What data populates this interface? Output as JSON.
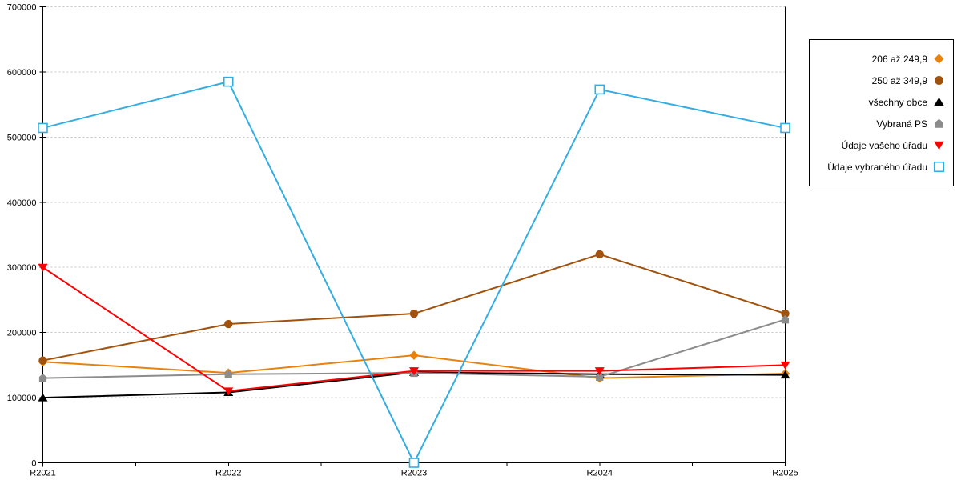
{
  "chart_data": {
    "type": "line",
    "title": "",
    "xlabel": "",
    "ylabel": "",
    "categories": [
      "R2021",
      "R2022",
      "R2023",
      "R2024",
      "R2025"
    ],
    "series": [
      {
        "name": "206 až 249,9",
        "color": "#E8820C",
        "marker": "diamond",
        "values": [
          155000,
          138000,
          165000,
          130000,
          137000
        ]
      },
      {
        "name": "250 až 349,9",
        "color": "#A0520D",
        "marker": "circle",
        "values": [
          157000,
          213000,
          229000,
          320000,
          229000
        ]
      },
      {
        "name": "všechny obce",
        "color": "#000000",
        "marker": "triangle-up",
        "values": [
          100000,
          108000,
          139000,
          136000,
          135000
        ]
      },
      {
        "name": "Vybraná PS",
        "color": "#8C8C8C",
        "marker": "pentagon-up",
        "values": [
          130000,
          136000,
          138000,
          132000,
          220000
        ]
      },
      {
        "name": "Údaje vašeho úřadu",
        "color": "#FB0000",
        "marker": "triangle-down",
        "values": [
          300000,
          110000,
          141000,
          141000,
          150000
        ]
      },
      {
        "name": "Údaje vybraného úřadu",
        "color": "#33ADE3",
        "marker": "square-open",
        "values": [
          514000,
          585000,
          0,
          573000,
          514000
        ]
      }
    ],
    "ylim": [
      0,
      700000
    ],
    "ytick_step": 100000,
    "ytick_labels": [
      "0",
      "100000",
      "200000",
      "300000",
      "400000",
      "500000",
      "600000",
      "700000"
    ],
    "grid": "horizontal-dashed",
    "gridline_color": "#c6c6c6",
    "axis_color": "#000000",
    "legend_position": "right",
    "legend_border_color": "#000000"
  }
}
